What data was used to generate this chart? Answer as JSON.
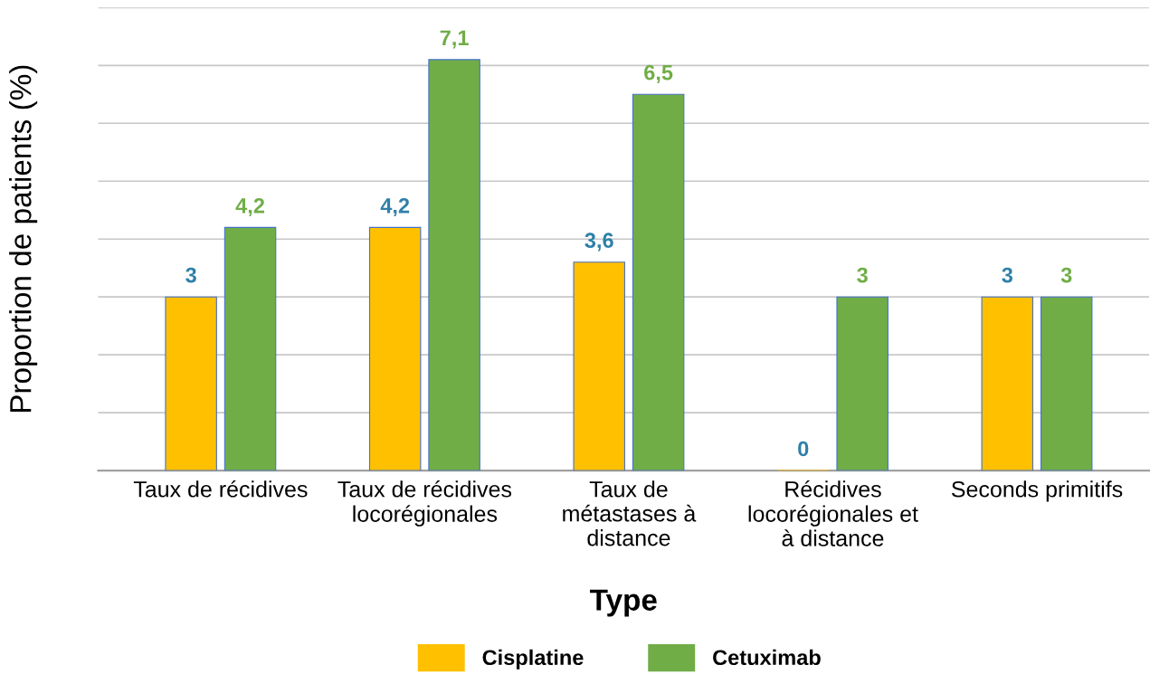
{
  "chart_data": {
    "type": "bar",
    "xlabel": "Type",
    "ylabel": "Proportion de patients (%)",
    "categories": [
      "Taux de récidives",
      "Taux de récidives locorégionales",
      "Taux de métastases à distance",
      "Récidives locorégionales et à distance",
      "Seconds primitifs"
    ],
    "series": [
      {
        "name": "Cisplatine",
        "color": "#ffc000",
        "values": [
          3,
          4.2,
          3.6,
          0,
          3
        ],
        "value_labels": [
          "3",
          "4,2",
          "3,6",
          "0",
          "3"
        ]
      },
      {
        "name": "Cetuximab",
        "color": "#70ad47",
        "values": [
          4.2,
          7.1,
          6.5,
          3,
          3
        ],
        "value_labels": [
          "4,2",
          "7,1",
          "6,5",
          "3",
          "3"
        ]
      }
    ],
    "ylim": [
      0,
      8
    ],
    "yticks": [
      {
        "value": 0,
        "label": null
      },
      {
        "value": 1,
        "label": null
      },
      {
        "value": 2,
        "label": null
      },
      {
        "value": 3,
        "label": null
      },
      {
        "value": 4,
        "label": null
      },
      {
        "value": 5,
        "label": null
      },
      {
        "value": 6,
        "label": null
      },
      {
        "value": 7,
        "label": null
      },
      {
        "value": 8,
        "label": null
      }
    ],
    "tick_labels": "x",
    "grid": "y",
    "legend": "bottom"
  }
}
